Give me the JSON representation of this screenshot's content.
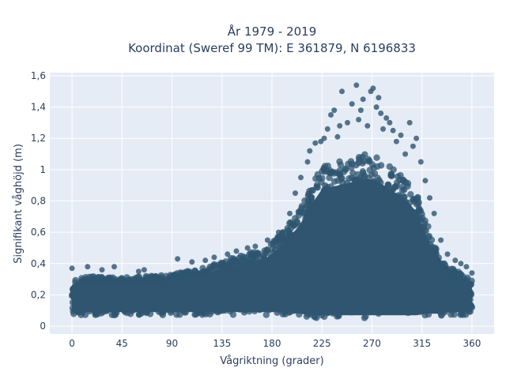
{
  "chart_data": {
    "type": "scatter",
    "title_line1": "År 1979 - 2019",
    "title_line2": "Koordinat (Sweref 99 TM): E 361879, N 6196833",
    "xlabel": "Vågriktning (grader)",
    "ylabel": "Signifikant våghöjd (m)",
    "xlim": [
      -20,
      380
    ],
    "ylim": [
      -0.05,
      1.62
    ],
    "x_ticks": [
      0,
      45,
      90,
      135,
      180,
      225,
      270,
      315,
      360
    ],
    "x_tick_labels": [
      "0",
      "45",
      "90",
      "135",
      "180",
      "225",
      "270",
      "315",
      "360"
    ],
    "y_ticks": [
      0,
      0.2,
      0.4,
      0.6,
      0.8,
      1.0,
      1.2,
      1.4,
      1.6
    ],
    "y_tick_labels": [
      "0",
      "0,2",
      "0,4",
      "0,6",
      "0,8",
      "1",
      "1,2",
      "1,4",
      "1,6"
    ],
    "grid": true,
    "marker_color": "#2f5570",
    "background_color": "#e5ecf6",
    "envelope": {
      "x": [
        0,
        20,
        45,
        90,
        120,
        150,
        175,
        190,
        205,
        215,
        225,
        240,
        255,
        265,
        275,
        290,
        300,
        310,
        320,
        330,
        340,
        350,
        360
      ],
      "upper": [
        0.3,
        0.32,
        0.31,
        0.33,
        0.38,
        0.45,
        0.5,
        0.6,
        0.75,
        0.9,
        1.02,
        1.05,
        1.08,
        1.1,
        1.08,
        1.0,
        0.95,
        0.85,
        0.65,
        0.45,
        0.38,
        0.34,
        0.3
      ],
      "lower": [
        0.07,
        0.07,
        0.07,
        0.07,
        0.07,
        0.07,
        0.07,
        0.07,
        0.06,
        0.05,
        0.05,
        0.05,
        0.05,
        0.05,
        0.05,
        0.05,
        0.05,
        0.05,
        0.06,
        0.06,
        0.07,
        0.07,
        0.07
      ]
    },
    "outliers": [
      [
        0,
        0.37
      ],
      [
        14,
        0.38
      ],
      [
        27,
        0.36
      ],
      [
        38,
        0.38
      ],
      [
        60,
        0.35
      ],
      [
        65,
        0.36
      ],
      [
        95,
        0.43
      ],
      [
        108,
        0.41
      ],
      [
        120,
        0.42
      ],
      [
        128,
        0.44
      ],
      [
        140,
        0.46
      ],
      [
        148,
        0.48
      ],
      [
        158,
        0.5
      ],
      [
        165,
        0.51
      ],
      [
        176,
        0.55
      ],
      [
        186,
        0.6
      ],
      [
        196,
        0.72
      ],
      [
        201,
        0.85
      ],
      [
        206,
        0.95
      ],
      [
        212,
        1.05
      ],
      [
        214,
        1.12
      ],
      [
        219,
        1.17
      ],
      [
        224,
        1.18
      ],
      [
        227,
        1.2
      ],
      [
        230,
        1.26
      ],
      [
        233,
        1.35
      ],
      [
        236,
        1.38
      ],
      [
        239,
        1.21
      ],
      [
        241,
        1.28
      ],
      [
        243,
        1.5
      ],
      [
        248,
        1.3
      ],
      [
        252,
        1.42
      ],
      [
        256,
        1.54
      ],
      [
        258,
        1.32
      ],
      [
        260,
        1.38
      ],
      [
        262,
        1.45
      ],
      [
        266,
        1.28
      ],
      [
        269,
        1.5
      ],
      [
        271,
        1.52
      ],
      [
        274,
        1.4
      ],
      [
        276,
        1.46
      ],
      [
        278,
        1.36
      ],
      [
        280,
        1.26
      ],
      [
        283,
        1.33
      ],
      [
        286,
        1.3
      ],
      [
        289,
        1.25
      ],
      [
        292,
        1.18
      ],
      [
        296,
        1.22
      ],
      [
        300,
        1.1
      ],
      [
        304,
        1.3
      ],
      [
        307,
        1.15
      ],
      [
        310,
        1.2
      ],
      [
        314,
        1.05
      ],
      [
        318,
        0.93
      ],
      [
        322,
        0.82
      ],
      [
        326,
        0.72
      ],
      [
        332,
        0.55
      ],
      [
        338,
        0.46
      ],
      [
        345,
        0.42
      ],
      [
        350,
        0.4
      ],
      [
        355,
        0.38
      ],
      [
        360,
        0.34
      ]
    ]
  }
}
